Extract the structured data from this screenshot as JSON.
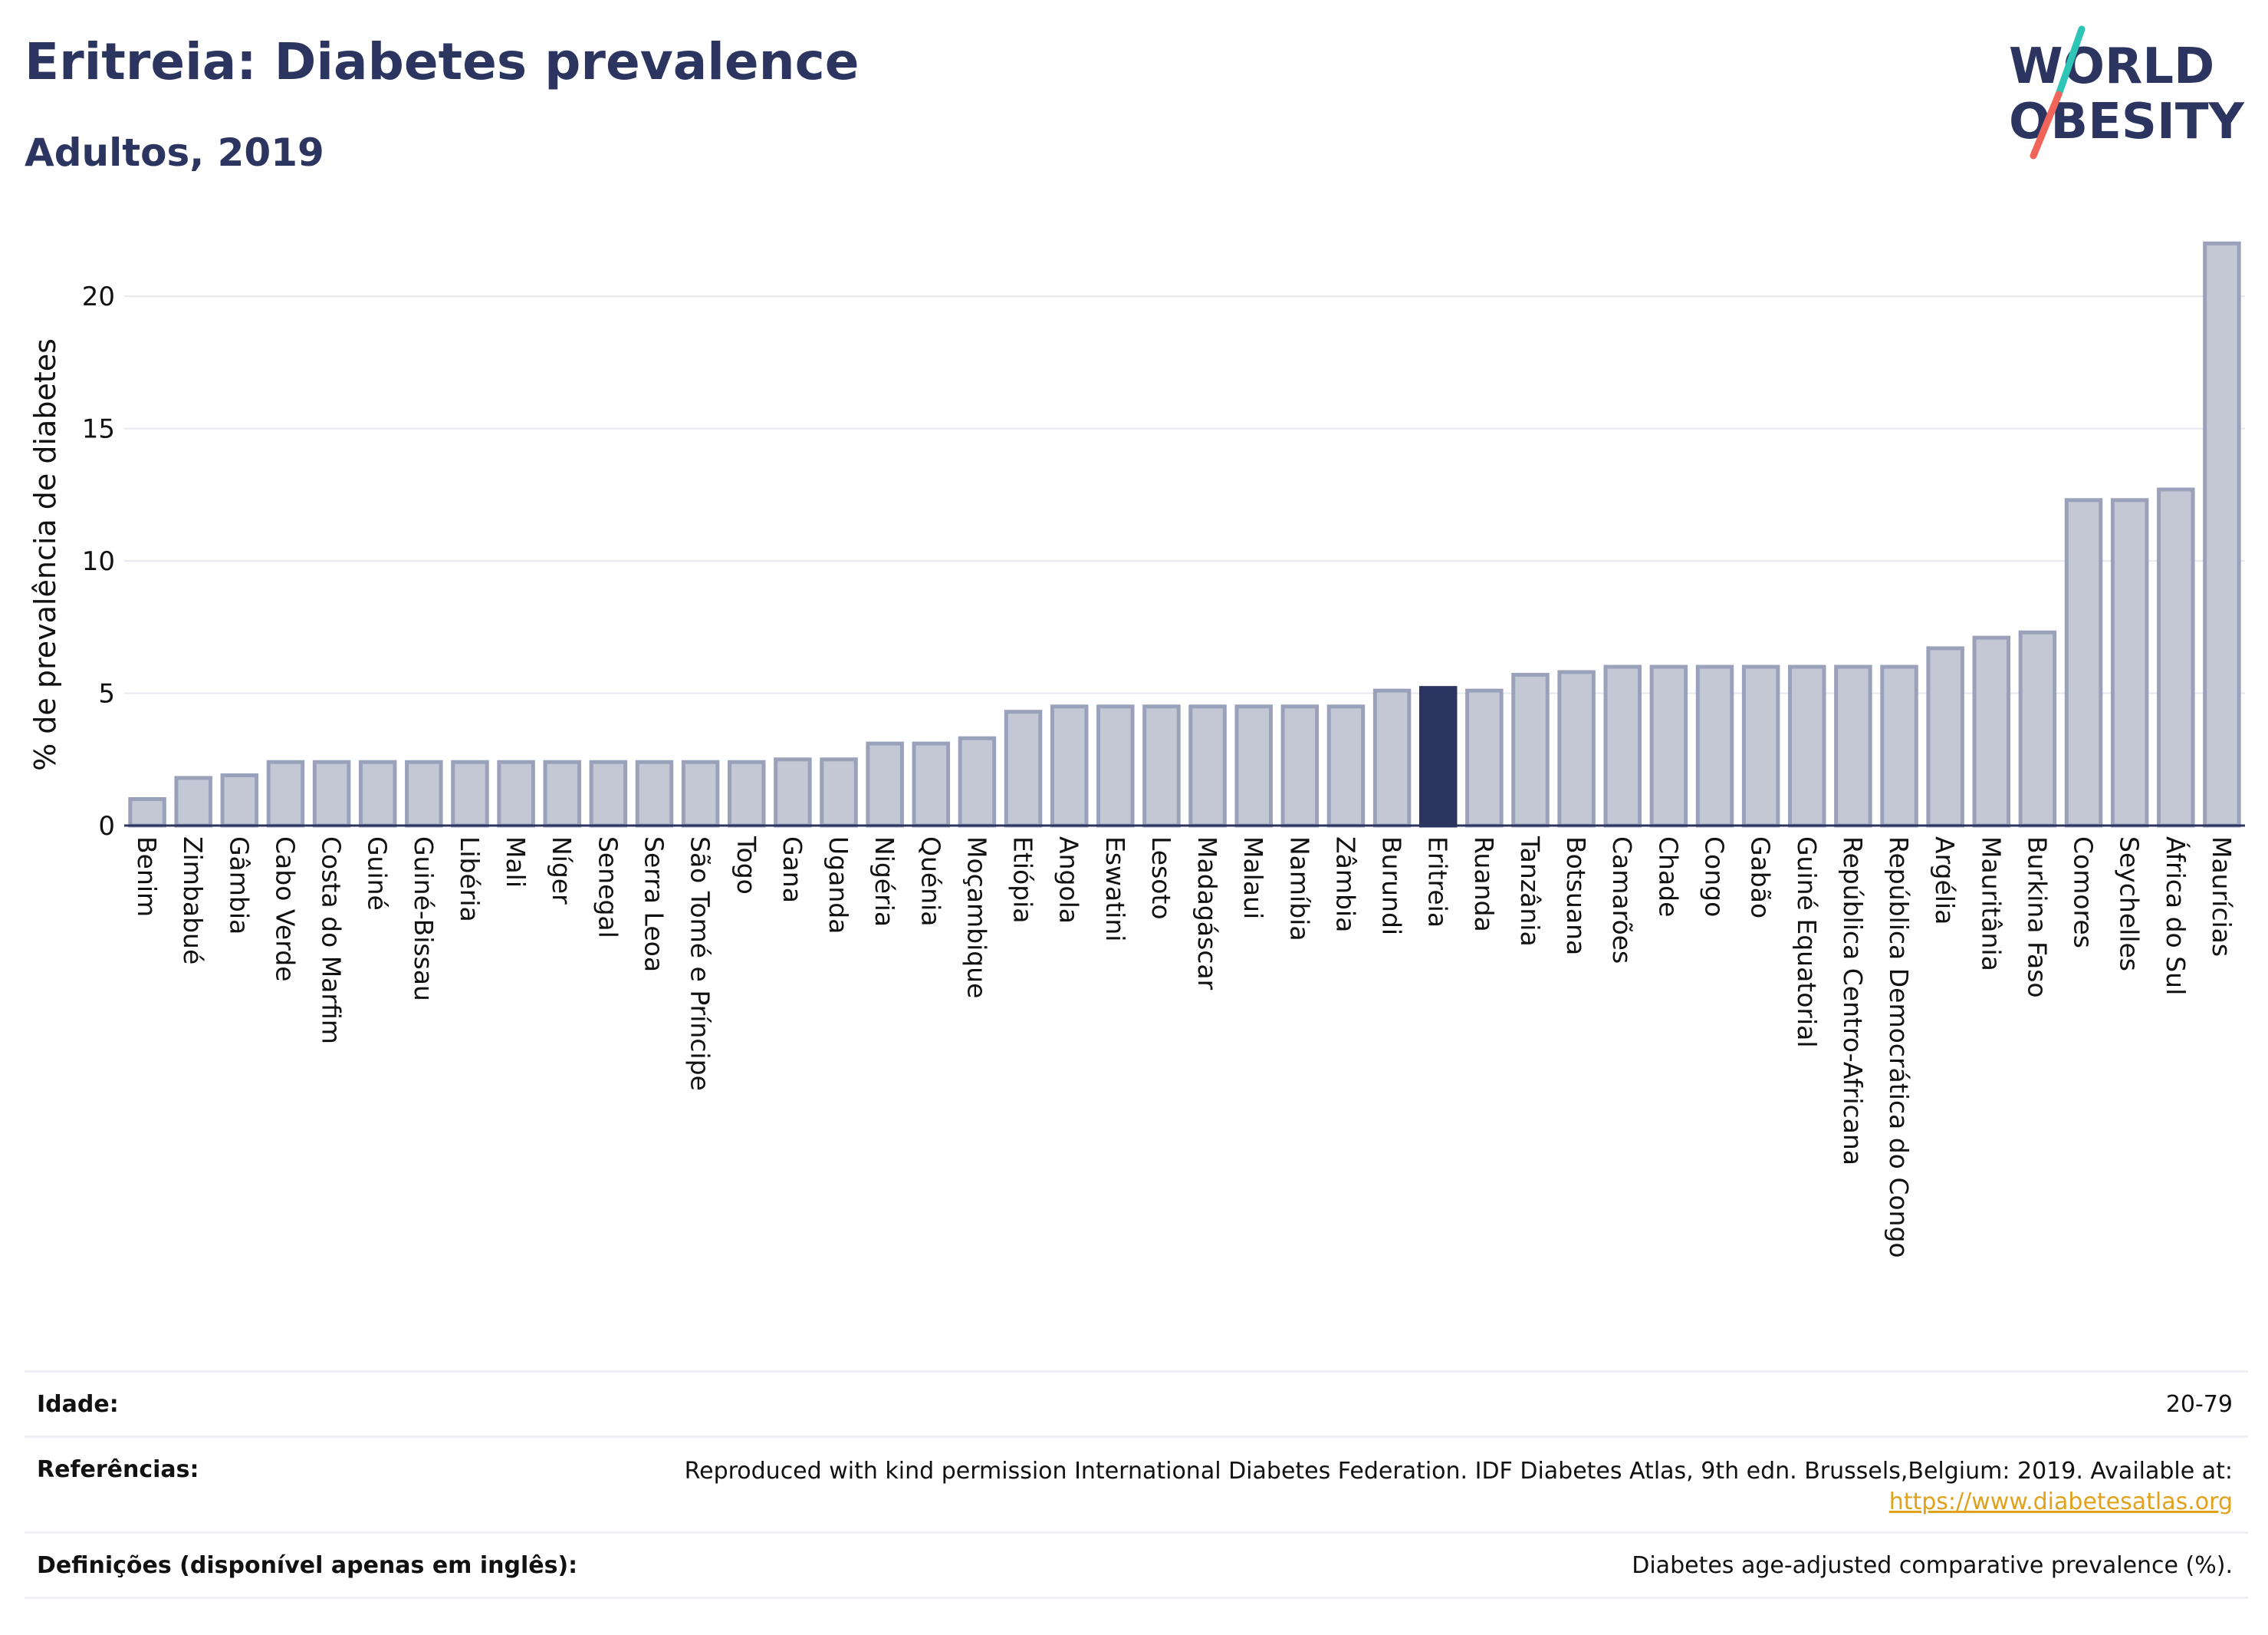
{
  "header": {
    "title": "Eritreia: Diabetes prevalence",
    "subtitle": "Adultos, 2019"
  },
  "logo": {
    "line1": "WORLD",
    "line2": "OBESITY",
    "text_color": "#2b3560",
    "slash_teal": "#2ec4b6",
    "slash_coral": "#f0645a"
  },
  "colors": {
    "bar_fill": "#c4c8d5",
    "bar_edge": "#9aa1ba",
    "highlight_fill": "#2b3560",
    "grid": "#e6e8ef",
    "axis_text": "#111111"
  },
  "chart_data": {
    "type": "bar",
    "ylabel": "% de prevalência de diabetes",
    "ylim": [
      0,
      22.5
    ],
    "yticks": [
      0,
      5,
      10,
      15,
      20
    ],
    "grid": true,
    "highlight": "Eritreia",
    "categories": [
      "Benim",
      "Zimbabué",
      "Gâmbia",
      "Cabo Verde",
      "Costa do Marfim",
      "Guiné",
      "Guiné-Bissau",
      "Libéria",
      "Mali",
      "Níger",
      "Senegal",
      "Serra Leoa",
      "São Tomé e Príncipe",
      "Togo",
      "Gana",
      "Uganda",
      "Nigéria",
      "Quénia",
      "Moçambique",
      "Etiópia",
      "Angola",
      "Eswatini",
      "Lesoto",
      "Madagáscar",
      "Malaui",
      "Namíbia",
      "Zâmbia",
      "Burundi",
      "Eritreia",
      "Ruanda",
      "Tanzânia",
      "Botsuana",
      "Camarões",
      "Chade",
      "Congo",
      "Gabão",
      "Guiné Equatorial",
      "República Centro-Africana",
      "República Democrática do Congo",
      "Argélia",
      "Mauritânia",
      "Burkina Faso",
      "Comores",
      "Seychelles",
      "África do Sul",
      "Maurícias"
    ],
    "values": [
      1.0,
      1.8,
      1.9,
      2.4,
      2.4,
      2.4,
      2.4,
      2.4,
      2.4,
      2.4,
      2.4,
      2.4,
      2.4,
      2.4,
      2.5,
      2.5,
      3.1,
      3.1,
      3.3,
      4.3,
      4.5,
      4.5,
      4.5,
      4.5,
      4.5,
      4.5,
      4.5,
      5.1,
      5.2,
      5.1,
      5.7,
      5.8,
      6.0,
      6.0,
      6.0,
      6.0,
      6.0,
      6.0,
      6.0,
      6.7,
      7.1,
      7.3,
      12.3,
      12.3,
      12.7,
      22.0
    ]
  },
  "footer": {
    "age_label": "Idade:",
    "age_value": "20-79",
    "refs_label": "Referências:",
    "refs_text": "Reproduced with kind permission International Diabetes Federation. IDF Diabetes Atlas, 9th edn. Brussels,Belgium: 2019. Available at:",
    "refs_link": "https://www.diabetesatlas.org",
    "defs_label": "Definições (disponível apenas em inglês):",
    "defs_value": "Diabetes age-adjusted comparative prevalence (%)."
  }
}
